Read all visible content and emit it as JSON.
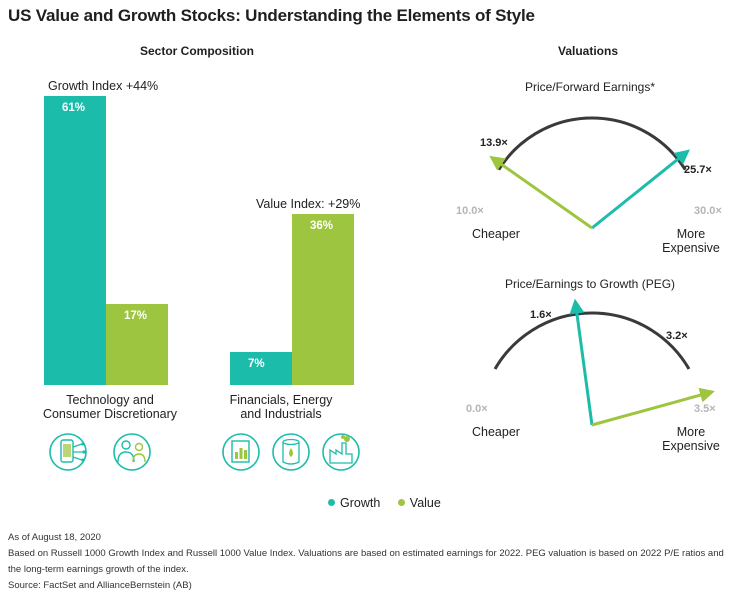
{
  "title": "US Value and Growth Stocks: Understanding the Elements of Style",
  "colors": {
    "growth": "#1cbcaa",
    "value": "#9ec53f",
    "arc": "#3a3a3a",
    "muted": "#b5b5b5"
  },
  "sector": {
    "heading": "Sector Composition",
    "growth_index_label": "Growth Index +44%",
    "value_index_label": "Value Index: +29%",
    "group1_label_line1": "Technology and",
    "group1_label_line2": "Consumer Discretionary",
    "group2_label_line1": "Financials, Energy",
    "group2_label_line2": "and Industrials",
    "group1_icons": [
      "smartphone-circuit-icon",
      "people-icon"
    ],
    "group2_icons": [
      "bar-chart-document-icon",
      "oil-barrel-icon",
      "factory-icon"
    ]
  },
  "valuations": {
    "heading": "Valuations",
    "gauge1": {
      "title": "Price/Forward Earnings*",
      "min_label": "10.0×",
      "max_label": "30.0×",
      "left_label": "Cheaper",
      "right_label_line1": "More",
      "right_label_line2": "Expensive",
      "growth_label": "25.7×",
      "value_label": "13.9×"
    },
    "gauge2": {
      "title": "Price/Earnings to Growth (PEG)",
      "min_label": "0.0×",
      "max_label": "3.5×",
      "left_label": "Cheaper",
      "right_label_line1": "More",
      "right_label_line2": "Expensive",
      "growth_label": "1.6×",
      "value_label": "3.2×"
    }
  },
  "legend": {
    "growth": "Growth",
    "value": "Value"
  },
  "footnotes": {
    "line1": "As of August 18, 2020",
    "line2": "Based on Russell 1000 Growth Index and Russell 1000 Value Index. Valuations are based on estimated earnings for 2022. PEG valuation is based on 2022 P/E ratios and the long-term earnings growth of the index.",
    "line3": "Source: FactSet and AllianceBernstein (AB)"
  },
  "chart_data": [
    {
      "type": "bar",
      "title": "Sector Composition",
      "categories": [
        "Technology and Consumer Discretionary",
        "Financials, Energy and Industrials"
      ],
      "series": [
        {
          "name": "Growth",
          "values": [
            61,
            7
          ],
          "labels": [
            "61%",
            "7%"
          ]
        },
        {
          "name": "Value",
          "values": [
            17,
            36
          ],
          "labels": [
            "17%",
            "36%"
          ]
        }
      ],
      "ylim": [
        0,
        61
      ]
    },
    {
      "type": "gauge",
      "title": "Price/Forward Earnings*",
      "range": [
        10.0,
        30.0
      ],
      "series": [
        {
          "name": "Growth",
          "value": 25.7
        },
        {
          "name": "Value",
          "value": 13.9
        }
      ]
    },
    {
      "type": "gauge",
      "title": "Price/Earnings to Growth (PEG)",
      "range": [
        0.0,
        3.5
      ],
      "series": [
        {
          "name": "Growth",
          "value": 1.6
        },
        {
          "name": "Value",
          "value": 3.2
        }
      ]
    }
  ]
}
